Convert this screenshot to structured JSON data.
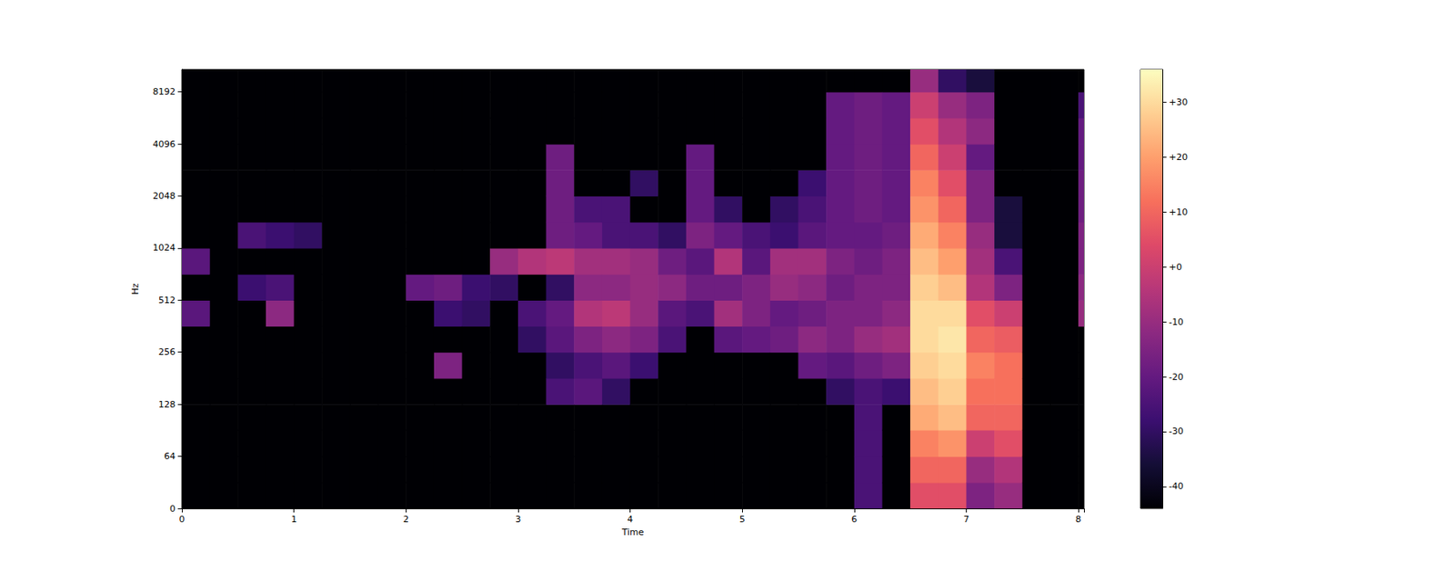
{
  "chart_data": {
    "type": "heatmap",
    "xlabel": "Time",
    "ylabel": "Hz",
    "log": "y",
    "xlim": [
      0,
      8.05
    ],
    "xticks": [
      0,
      1,
      2,
      3,
      4,
      5,
      6,
      7,
      8
    ],
    "ylim": [
      0,
      11025
    ],
    "yticks": [
      0,
      64,
      128,
      256,
      512,
      1024,
      2048,
      4096,
      8192
    ],
    "x_edges": [
      0,
      0.25,
      0.5,
      0.75,
      1,
      1.25,
      1.5,
      1.75,
      2,
      2.25,
      2.5,
      2.75,
      3,
      3.25,
      3.5,
      3.75,
      4,
      4.25,
      4.5,
      4.75,
      5,
      5.25,
      5.5,
      5.75,
      6,
      6.25,
      6.5,
      6.75,
      7,
      7.25,
      7.5,
      7.75,
      8,
      8.05
    ],
    "y_edges": [
      0,
      32,
      64,
      91,
      128,
      181,
      256,
      362,
      512,
      724,
      1024,
      1448,
      2048,
      2896,
      4096,
      5793,
      8192,
      11025
    ],
    "values": [
      [
        -44,
        -44,
        -44,
        -44,
        -44,
        -44,
        -44,
        -22,
        -44,
        -22,
        -44,
        -44,
        -44,
        -44,
        -44,
        -44,
        -44
      ],
      [
        -44,
        -44,
        -44,
        -44,
        -44,
        -44,
        -44,
        -44,
        -44,
        -44,
        -44,
        -44,
        -44,
        -44,
        -44,
        -44,
        -44
      ],
      [
        -44,
        -44,
        -44,
        -44,
        -44,
        -44,
        -44,
        -44,
        -28,
        -44,
        -25,
        -44,
        -44,
        -44,
        -44,
        -44,
        -44
      ],
      [
        -44,
        -44,
        -44,
        -44,
        -44,
        -44,
        -44,
        -12,
        -25,
        -44,
        -28,
        -44,
        -44,
        -44,
        -44,
        -44,
        -44
      ],
      [
        -44,
        -44,
        -44,
        -44,
        -44,
        -44,
        -44,
        -44,
        -44,
        -44,
        -30,
        -44,
        -44,
        -44,
        -44,
        -44,
        -44
      ],
      [
        -44,
        -44,
        -44,
        -44,
        -44,
        -44,
        -44,
        -44,
        -44,
        -44,
        -44,
        -44,
        -44,
        -44,
        -44,
        -44,
        -44
      ],
      [
        -44,
        -44,
        -44,
        -44,
        -44,
        -44,
        -44,
        -44,
        -44,
        -44,
        -44,
        -44,
        -44,
        -44,
        -44,
        -44,
        -44
      ],
      [
        -44,
        -44,
        -44,
        -44,
        -44,
        -44,
        -44,
        -44,
        -44,
        -44,
        -44,
        -44,
        -44,
        -44,
        -44,
        -44,
        -44
      ],
      [
        -44,
        -44,
        -44,
        -44,
        -44,
        -44,
        -44,
        -44,
        -20,
        -44,
        -44,
        -44,
        -44,
        -44,
        -44,
        -44,
        -44
      ],
      [
        -44,
        -44,
        -44,
        -44,
        -44,
        -15,
        -44,
        -28,
        -18,
        -44,
        -44,
        -44,
        -44,
        -44,
        -44,
        -44,
        -44
      ],
      [
        -44,
        -44,
        -44,
        -44,
        -44,
        -44,
        -44,
        -30,
        -28,
        -44,
        -44,
        -44,
        -44,
        -44,
        -44,
        -44,
        -44
      ],
      [
        -44,
        -44,
        -44,
        -44,
        -44,
        -44,
        -44,
        -44,
        -30,
        -10,
        -44,
        -44,
        -44,
        -44,
        -44,
        -44,
        -44
      ],
      [
        -44,
        -44,
        -44,
        -44,
        -44,
        -44,
        -30,
        -25,
        -44,
        -5,
        -44,
        -44,
        -44,
        -44,
        -44,
        -44,
        -44
      ],
      [
        -44,
        -44,
        -44,
        -44,
        -25,
        -30,
        -22,
        -20,
        -30,
        -3,
        -18,
        -18,
        -18,
        -18,
        -44,
        -44,
        -44
      ],
      [
        -44,
        -44,
        -44,
        -44,
        -22,
        -25,
        -15,
        -5,
        -12,
        -8,
        -20,
        -25,
        -44,
        -44,
        -44,
        -44,
        -44
      ],
      [
        -44,
        -44,
        -44,
        -44,
        -30,
        -22,
        -12,
        -3,
        -12,
        -8,
        -25,
        -25,
        -44,
        -44,
        -44,
        -44,
        -44
      ],
      [
        -44,
        -44,
        -44,
        -44,
        -44,
        -28,
        -15,
        -10,
        -10,
        -10,
        -25,
        -44,
        -30,
        -44,
        -44,
        -44,
        -44
      ],
      [
        -44,
        -44,
        -44,
        -44,
        -44,
        -44,
        -25,
        -22,
        -12,
        -18,
        -30,
        -44,
        -44,
        -44,
        -44,
        -44,
        -44
      ],
      [
        -44,
        -44,
        -44,
        -44,
        -44,
        -44,
        -44,
        -25,
        -18,
        -22,
        -15,
        -20,
        -20,
        -20,
        -44,
        -44,
        -44
      ],
      [
        -44,
        -44,
        -44,
        -44,
        -44,
        -44,
        -22,
        -8,
        -18,
        -5,
        -20,
        -30,
        -44,
        -44,
        -44,
        -44,
        -44
      ],
      [
        -44,
        -44,
        -44,
        -44,
        -44,
        -44,
        -20,
        -15,
        -15,
        -22,
        -25,
        -44,
        -44,
        -44,
        -44,
        -44,
        -44
      ],
      [
        -44,
        -44,
        -44,
        -44,
        -44,
        -44,
        -18,
        -20,
        -10,
        -8,
        -28,
        -30,
        -44,
        -44,
        -44,
        -44,
        -44
      ],
      [
        -44,
        -44,
        -44,
        -44,
        -44,
        -20,
        -12,
        -18,
        -12,
        -8,
        -22,
        -25,
        -28,
        -44,
        -44,
        -44,
        -44
      ],
      [
        -44,
        -44,
        -44,
        -44,
        -30,
        -22,
        -15,
        -15,
        -18,
        -15,
        -20,
        -20,
        -20,
        -20,
        -20,
        -20,
        -44
      ],
      [
        -25,
        -25,
        -25,
        -25,
        -25,
        -18,
        -10,
        -15,
        -15,
        -18,
        -20,
        -18,
        -18,
        -18,
        -18,
        -18,
        -44
      ],
      [
        -44,
        -44,
        -44,
        -44,
        -28,
        -15,
        -8,
        -12,
        -15,
        -15,
        -18,
        -20,
        -20,
        -20,
        -20,
        -20,
        -44
      ],
      [
        5,
        10,
        15,
        22,
        25,
        28,
        30,
        30,
        28,
        25,
        22,
        18,
        15,
        10,
        5,
        0,
        -10
      ],
      [
        5,
        10,
        18,
        25,
        28,
        30,
        32,
        30,
        25,
        20,
        15,
        10,
        5,
        0,
        -5,
        -10,
        -30
      ],
      [
        -15,
        -10,
        0,
        10,
        12,
        15,
        10,
        5,
        -5,
        -8,
        -10,
        -15,
        -15,
        -20,
        -12,
        -15,
        -35
      ],
      [
        -10,
        -5,
        5,
        10,
        12,
        12,
        8,
        0,
        -15,
        -25,
        -35,
        -35,
        -44,
        -44,
        -44,
        -44,
        -44
      ],
      [
        -44,
        -44,
        -44,
        -44,
        -44,
        -44,
        -44,
        -44,
        -44,
        -44,
        -44,
        -44,
        -44,
        -44,
        -44,
        -44,
        -44
      ],
      [
        -44,
        -44,
        -44,
        -44,
        -44,
        -44,
        -44,
        -44,
        -44,
        -44,
        -44,
        -44,
        -44,
        -44,
        -44,
        -44,
        -44
      ],
      [
        -44,
        -44,
        -44,
        -44,
        -44,
        -44,
        -44,
        -10,
        -12,
        -15,
        -15,
        -18,
        -18,
        -20,
        -20,
        -25,
        -44
      ]
    ],
    "colorbar": {
      "range": [
        -44,
        36
      ],
      "ticks": [
        {
          "value": 30,
          "label": "+30"
        },
        {
          "value": 20,
          "label": "+20"
        },
        {
          "value": 10,
          "label": "+10"
        },
        {
          "value": 0,
          "label": "+0"
        },
        -10,
        -20,
        -30,
        -40
      ]
    }
  }
}
